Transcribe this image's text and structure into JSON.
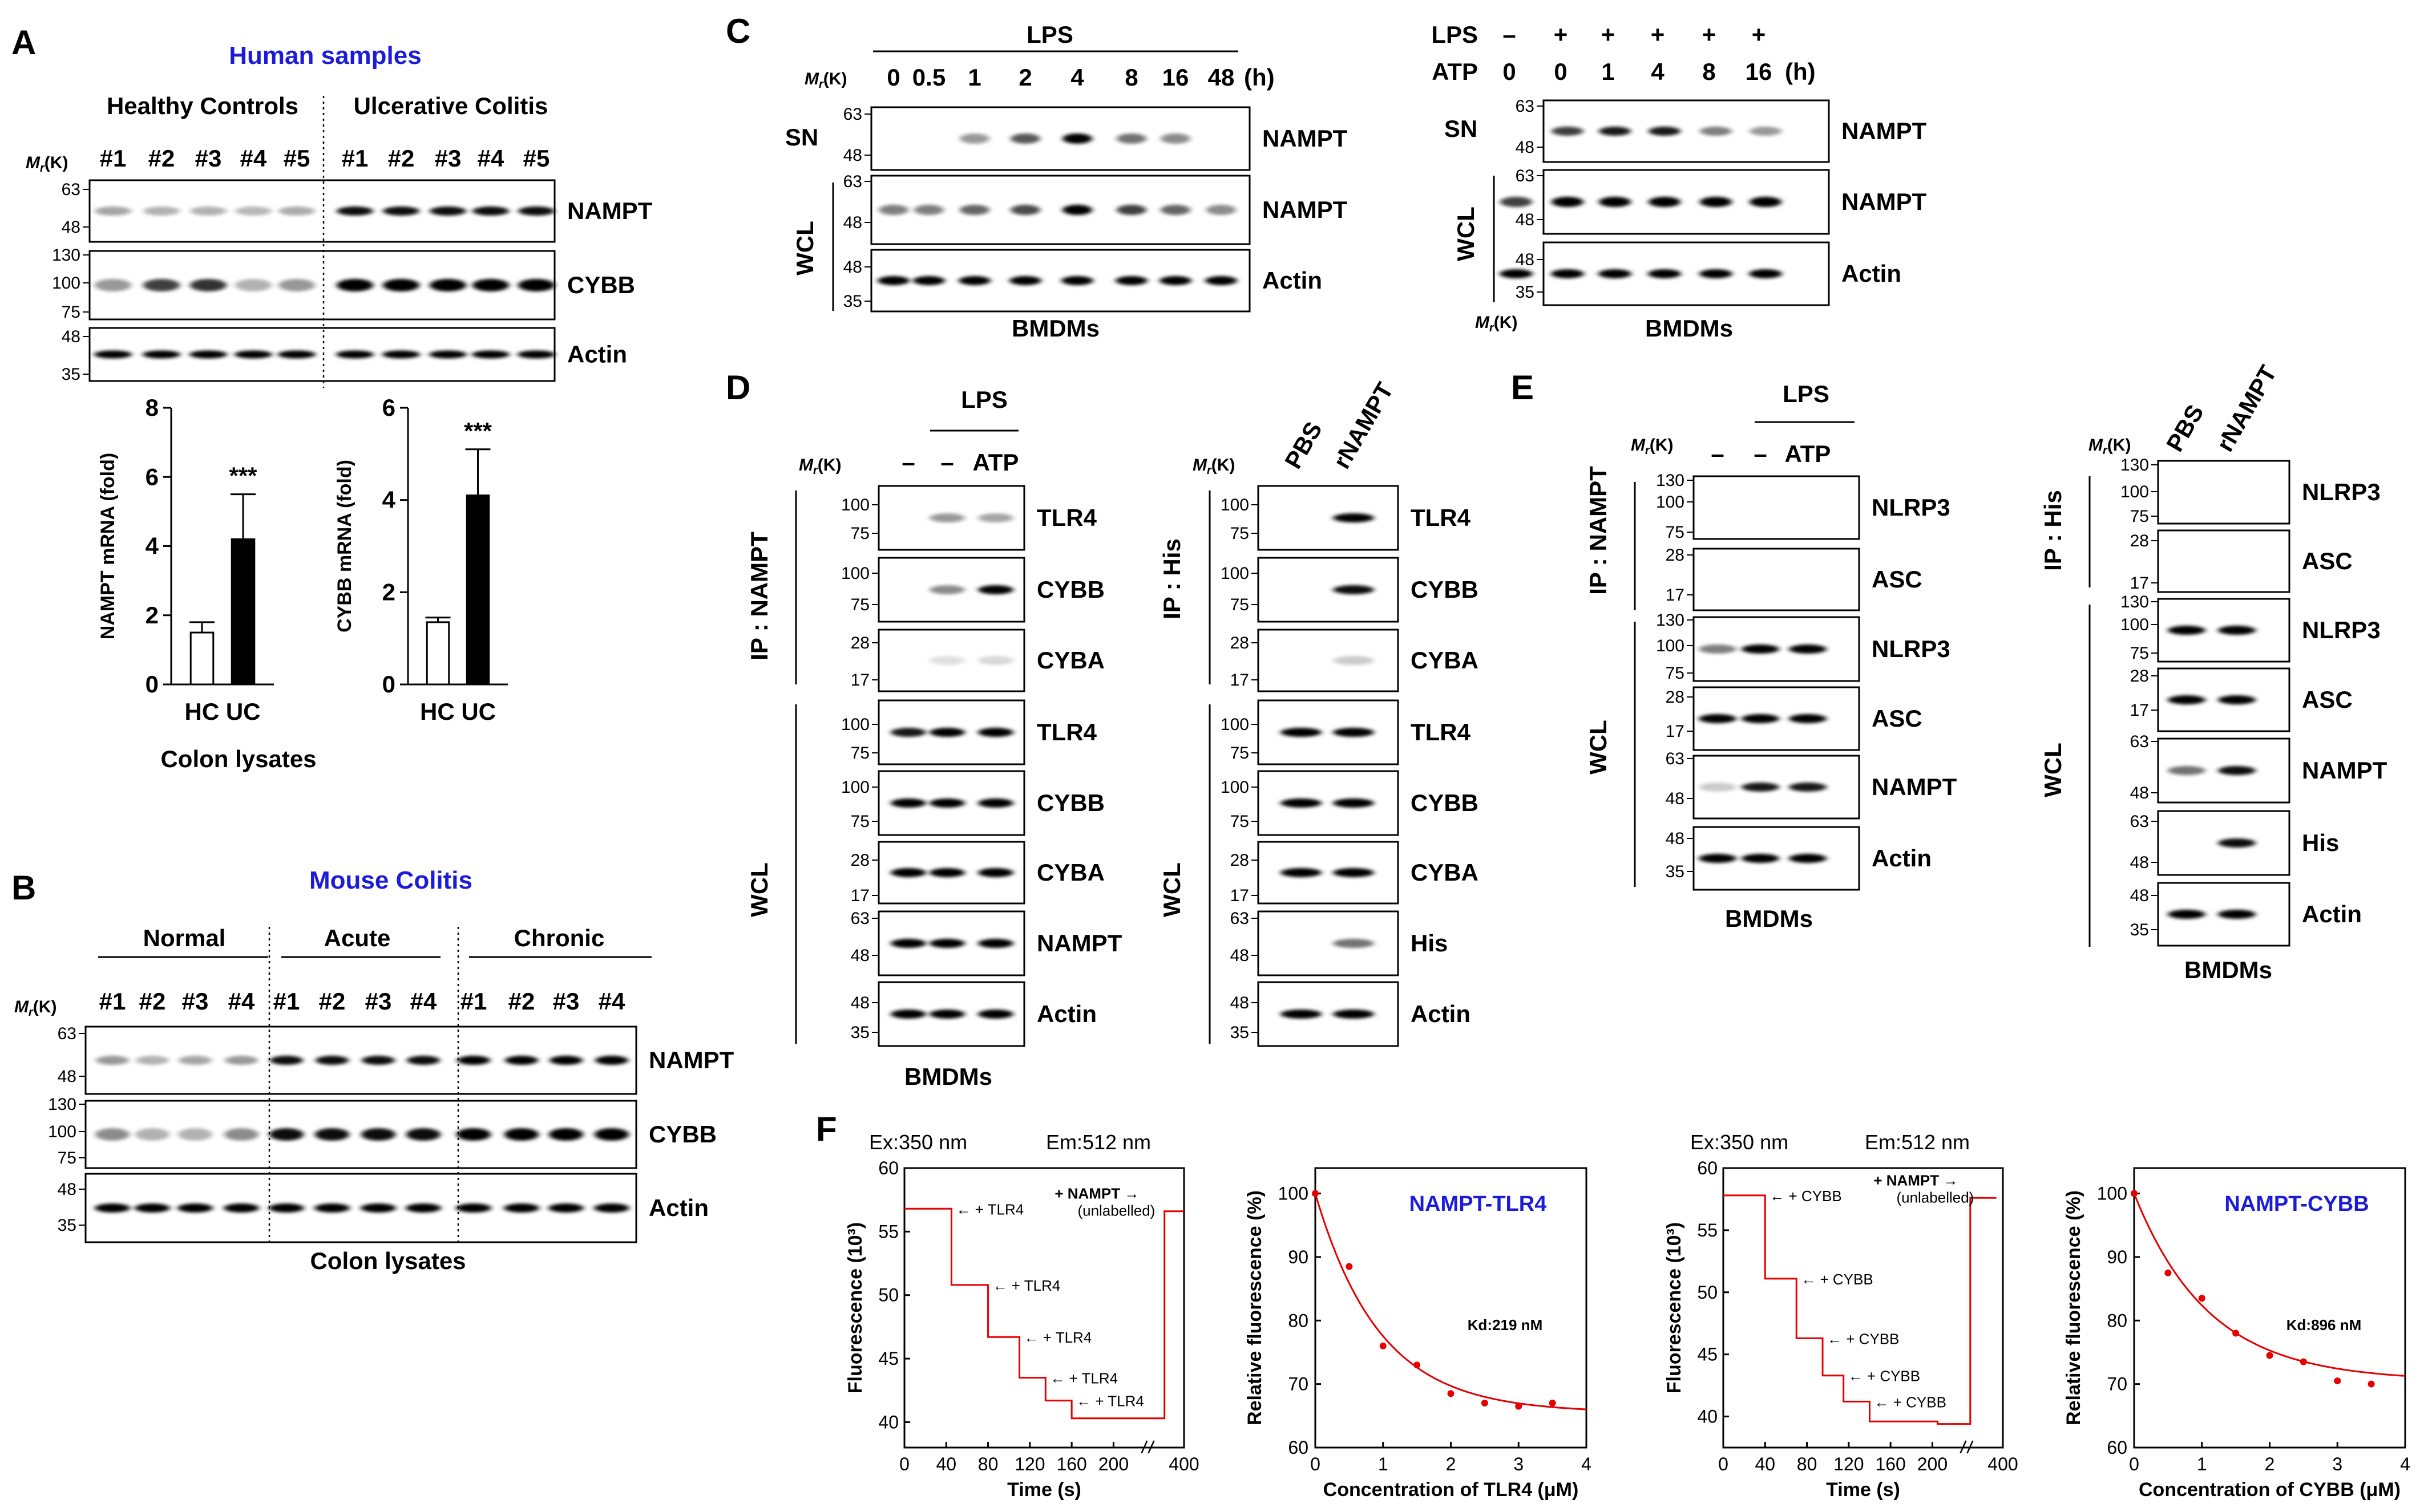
{
  "colors": {
    "title_blue": "#1c1cd8",
    "fit_red": "#e60000"
  },
  "common": {
    "mr": "M",
    "mr_sub": "r",
    "mr_unit": "(K)",
    "wcl": "WCL",
    "bmdms": "BMDMs",
    "time_unit": "(h)",
    "pbs": "PBS",
    "rnampt": "rNAMPT"
  },
  "panelA": {
    "letter": "A",
    "title": "Human samples",
    "groups": [
      "Healthy Controls",
      "Ulcerative Colitis"
    ],
    "lanes": [
      "#1",
      "#2",
      "#3",
      "#4",
      "#5",
      "#1",
      "#2",
      "#3",
      "#4",
      "#5"
    ],
    "markers": [
      "63",
      "48",
      "130",
      "100",
      "75",
      "48",
      "35"
    ],
    "bands": [
      "NAMPT",
      "CYBB",
      "Actin"
    ],
    "footer": "Colon lysates"
  },
  "panelB": {
    "letter": "B",
    "title": "Mouse Colitis",
    "groups": [
      "Normal",
      "Acute",
      "Chronic"
    ],
    "lanes": [
      "#1",
      "#2",
      "#3",
      "#4",
      "#1",
      "#2",
      "#3",
      "#4",
      "#1",
      "#2",
      "#3",
      "#4"
    ],
    "markers": [
      "63",
      "48",
      "130",
      "100",
      "75",
      "48",
      "35"
    ],
    "bands": [
      "NAMPT",
      "CYBB",
      "Actin"
    ],
    "footer": "Colon lysates"
  },
  "panelC": {
    "letter": "C",
    "left": {
      "treatment": "LPS",
      "times": [
        "0",
        "0.5",
        "1",
        "2",
        "4",
        "8",
        "16",
        "48"
      ],
      "side": [
        "SN",
        "WCL"
      ],
      "bands": [
        "NAMPT",
        "NAMPT",
        "Actin"
      ],
      "markers": [
        "63",
        "48",
        "63",
        "48",
        "48",
        "35"
      ]
    },
    "right": {
      "row1": "LPS",
      "row2": "ATP",
      "lps": [
        "–",
        "+",
        "+",
        "+",
        "+",
        "+"
      ],
      "atp": [
        "0",
        "0",
        "1",
        "4",
        "8",
        "16"
      ],
      "side": [
        "SN",
        "WCL"
      ],
      "bands": [
        "NAMPT",
        "NAMPT",
        "Actin"
      ],
      "markers": [
        "63",
        "48",
        "63",
        "48",
        "48",
        "35"
      ]
    }
  },
  "panelD": {
    "letter": "D",
    "left": {
      "treat": "LPS",
      "lanes": [
        "–",
        "–",
        "ATP"
      ],
      "ip": "IP : NAMPT",
      "bands": [
        "TLR4",
        "CYBB",
        "CYBA",
        "TLR4",
        "CYBB",
        "CYBA",
        "NAMPT",
        "Actin"
      ],
      "markers": [
        "100",
        "75",
        "100",
        "75",
        "28",
        "17",
        "100",
        "75",
        "100",
        "75",
        "28",
        "17",
        "63",
        "48",
        "48",
        "35"
      ]
    },
    "right": {
      "ip": "IP : His",
      "bands": [
        "TLR4",
        "CYBB",
        "CYBA",
        "TLR4",
        "CYBB",
        "CYBA",
        "His",
        "Actin"
      ],
      "markers": [
        "100",
        "75",
        "100",
        "75",
        "28",
        "17",
        "100",
        "75",
        "100",
        "75",
        "28",
        "17",
        "63",
        "48",
        "48",
        "35"
      ]
    }
  },
  "panelE": {
    "letter": "E",
    "left": {
      "treat": "LPS",
      "lanes": [
        "–",
        "–",
        "ATP"
      ],
      "ip": "IP : NAMPT",
      "bands": [
        "NLRP3",
        "ASC",
        "NLRP3",
        "ASC",
        "NAMPT",
        "Actin"
      ],
      "markers": [
        "130",
        "100",
        "75",
        "28",
        "17",
        "130",
        "100",
        "75",
        "28",
        "17",
        "63",
        "48",
        "48",
        "35"
      ]
    },
    "right": {
      "ip": "IP : His",
      "bands": [
        "NLRP3",
        "ASC",
        "NLRP3",
        "ASC",
        "NAMPT",
        "His",
        "Actin"
      ],
      "markers": [
        "130",
        "100",
        "75",
        "28",
        "17",
        "130",
        "100",
        "75",
        "28",
        "17",
        "63",
        "48",
        "63",
        "48",
        "48",
        "35"
      ]
    }
  },
  "panelF": {
    "letter": "F",
    "exA": "Ex:350 nm",
    "emA": "Em:512 nm",
    "exB": "Ex:350 nm",
    "emB": "Em:512 nm",
    "ann1": [
      "← + TLR4",
      "← + TLR4",
      "← + TLR4",
      "← + TLR4",
      "← + TLR4"
    ],
    "ann2": [
      "← + CYBB",
      "← + CYBB",
      "← + CYBB",
      "← + CYBB",
      "← + CYBB"
    ],
    "nampt_add": "+ NAMPT →",
    "unlabelled": "(unlabelled)"
  },
  "chart_data": [
    {
      "type": "bar",
      "title": "",
      "ylabel": "NAMPT mRNA (fold)",
      "xlabel": "HC UC",
      "subtitle": "Colon lysates",
      "categories": [
        "HC",
        "UC"
      ],
      "values": [
        1.5,
        4.2
      ],
      "errors": [
        0.3,
        1.3
      ],
      "ylim": [
        0,
        8
      ],
      "yticks": [
        "0",
        "2",
        "4",
        "6",
        "8"
      ],
      "significance": "***"
    },
    {
      "type": "bar",
      "title": "",
      "ylabel": "CYBB mRNA (fold)",
      "xlabel": "HC UC",
      "categories": [
        "HC",
        "UC"
      ],
      "values": [
        1.35,
        4.1
      ],
      "errors": [
        0.1,
        1.0
      ],
      "ylim": [
        0,
        6
      ],
      "yticks": [
        "0",
        "2",
        "4",
        "6"
      ],
      "significance": "***"
    },
    {
      "type": "line",
      "title": "",
      "xlabel": "Time (s)",
      "ylabel": "Fluorescence (10³)",
      "xticks": [
        "0",
        "40",
        "80",
        "120",
        "160",
        "200",
        "400"
      ],
      "yticks": [
        "40",
        "45",
        "50",
        "55",
        "60"
      ],
      "ylim": [
        38,
        60
      ],
      "steps": [
        [
          0,
          56.8
        ],
        [
          45,
          50.8
        ],
        [
          80,
          46.7
        ],
        [
          110,
          43.5
        ],
        [
          135,
          41.7
        ],
        [
          160,
          40.3
        ],
        [
          230,
          40.3
        ],
        [
          245,
          56.6
        ],
        [
          260,
          56.6
        ]
      ]
    },
    {
      "type": "scatter",
      "title": "NAMPT-TLR4",
      "xlabel": "Concentration of TLR4 (μM)",
      "ylabel": "Relative fluorescence (%)",
      "xticks": [
        "0",
        "1",
        "2",
        "3",
        "4"
      ],
      "yticks": [
        "60",
        "70",
        "80",
        "90",
        "100"
      ],
      "xlim": [
        0,
        4
      ],
      "ylim": [
        60,
        104
      ],
      "x": [
        0,
        0.5,
        1.0,
        1.5,
        2.0,
        2.5,
        3.0,
        3.5
      ],
      "y": [
        100,
        88.5,
        76,
        73,
        68.5,
        67,
        66.5,
        67
      ],
      "fit": {
        "y0": 65.5,
        "amp": 34.5,
        "tau": 0.95
      },
      "annotation": "Kd:219 nM"
    },
    {
      "type": "line",
      "title": "",
      "xlabel": "Time (s)",
      "ylabel": "Fluorescence (10³)",
      "xticks": [
        "0",
        "40",
        "80",
        "120",
        "160",
        "200",
        "400"
      ],
      "yticks": [
        "40",
        "45",
        "50",
        "55",
        "60"
      ],
      "ylim": [
        37.5,
        60
      ],
      "steps": [
        [
          0,
          57.8
        ],
        [
          40,
          51.1
        ],
        [
          70,
          46.3
        ],
        [
          95,
          43.3
        ],
        [
          115,
          41.2
        ],
        [
          140,
          39.6
        ],
        [
          205,
          39.4
        ],
        [
          235,
          57.6
        ],
        [
          255,
          57.6
        ]
      ]
    },
    {
      "type": "scatter",
      "title": "NAMPT-CYBB",
      "xlabel": "Concentration of CYBB (μM)",
      "ylabel": "Relative fluorescence (%)",
      "xticks": [
        "0",
        "1",
        "2",
        "3",
        "4"
      ],
      "yticks": [
        "60",
        "70",
        "80",
        "90",
        "100"
      ],
      "xlim": [
        0,
        4
      ],
      "ylim": [
        60,
        104
      ],
      "x": [
        0,
        0.5,
        1.0,
        1.5,
        2.0,
        2.5,
        3.0,
        3.5
      ],
      "y": [
        100,
        87.5,
        83.5,
        78,
        74.5,
        73.5,
        70.5,
        70
      ],
      "fit": {
        "y0": 70.5,
        "amp": 29.5,
        "tau": 1.1
      },
      "annotation": "Kd:896 nM"
    }
  ]
}
